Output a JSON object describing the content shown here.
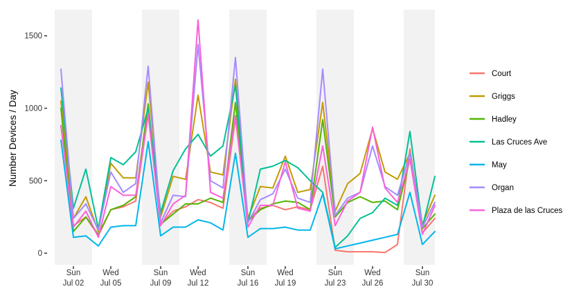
{
  "chart_data": {
    "type": "line",
    "title": "",
    "xlabel": "",
    "ylabel": "Number Devices / Day",
    "ylim": [
      -80,
      1680
    ],
    "xlim": [
      "2017-06-30",
      "2017-07-31"
    ],
    "y_ticks": [
      0,
      500,
      1000,
      1500
    ],
    "y_tick_labels": [
      "0",
      "500",
      "1000",
      "1500"
    ],
    "x_ticks": [
      {
        "date": "2017-07-02",
        "day": "Sun",
        "date_label": "Jul 02"
      },
      {
        "date": "2017-07-05",
        "day": "Wed",
        "date_label": "Jul 05"
      },
      {
        "date": "2017-07-09",
        "day": "Sun",
        "date_label": "Jul 09"
      },
      {
        "date": "2017-07-12",
        "day": "Wed",
        "date_label": "Jul 12"
      },
      {
        "date": "2017-07-16",
        "day": "Sun",
        "date_label": "Jul 16"
      },
      {
        "date": "2017-07-19",
        "day": "Wed",
        "date_label": "Jul 19"
      },
      {
        "date": "2017-07-23",
        "day": "Sun",
        "date_label": "Jul 23"
      },
      {
        "date": "2017-07-26",
        "day": "Wed",
        "date_label": "Jul 26"
      },
      {
        "date": "2017-07-30",
        "day": "Sun",
        "date_label": "Jul 30"
      }
    ],
    "weekend_bands": [
      [
        "2017-07-01",
        "2017-07-03"
      ],
      [
        "2017-07-08",
        "2017-07-10"
      ],
      [
        "2017-07-15",
        "2017-07-17"
      ],
      [
        "2017-07-22",
        "2017-07-24"
      ],
      [
        "2017-07-29",
        "2017-07-31"
      ]
    ],
    "grid": false,
    "legend_position": "right",
    "background_band_color": "#f2f2f2",
    "x": [
      "2017-07-01",
      "2017-07-02",
      "2017-07-03",
      "2017-07-04",
      "2017-07-05",
      "2017-07-06",
      "2017-07-07",
      "2017-07-08",
      "2017-07-09",
      "2017-07-10",
      "2017-07-11",
      "2017-07-12",
      "2017-07-13",
      "2017-07-14",
      "2017-07-15",
      "2017-07-16",
      "2017-07-17",
      "2017-07-18",
      "2017-07-19",
      "2017-07-20",
      "2017-07-21",
      "2017-07-22",
      "2017-07-23",
      "2017-07-24",
      "2017-07-25",
      "2017-07-26",
      "2017-07-27",
      "2017-07-28",
      "2017-07-29",
      "2017-07-30",
      "2017-07-31"
    ],
    "series": [
      {
        "name": "Court",
        "color": "#F8766D",
        "values": [
          880,
          190,
          250,
          120,
          300,
          320,
          360,
          960,
          200,
          290,
          320,
          370,
          350,
          310,
          930,
          230,
          310,
          330,
          300,
          320,
          300,
          600,
          20,
          10,
          10,
          10,
          5,
          60,
          720,
          140,
          240
        ]
      },
      {
        "name": "Griggs",
        "color": "#C49A00",
        "values": [
          1050,
          240,
          390,
          150,
          620,
          520,
          520,
          1180,
          250,
          530,
          510,
          1090,
          560,
          540,
          1200,
          240,
          460,
          450,
          670,
          420,
          440,
          1040,
          290,
          480,
          550,
          860,
          560,
          510,
          690,
          200,
          400
        ]
      },
      {
        "name": "Hadley",
        "color": "#53B400",
        "values": [
          1000,
          150,
          250,
          130,
          300,
          330,
          390,
          1030,
          200,
          270,
          340,
          340,
          380,
          350,
          1040,
          220,
          300,
          340,
          360,
          350,
          300,
          920,
          250,
          350,
          390,
          350,
          360,
          300,
          650,
          170,
          270
        ]
      },
      {
        "name": "Las Cruces Ave",
        "color": "#00C094",
        "values": [
          1140,
          310,
          580,
          170,
          660,
          610,
          700,
          1000,
          280,
          570,
          720,
          820,
          670,
          740,
          1160,
          210,
          580,
          600,
          640,
          590,
          500,
          420,
          40,
          120,
          240,
          280,
          380,
          330,
          840,
          180,
          530
        ]
      },
      {
        "name": "May",
        "color": "#00B6EB",
        "values": [
          780,
          110,
          120,
          50,
          180,
          190,
          190,
          770,
          120,
          180,
          180,
          230,
          210,
          160,
          690,
          110,
          170,
          170,
          180,
          160,
          160,
          410,
          30,
          50,
          70,
          90,
          110,
          130,
          420,
          60,
          150
        ]
      },
      {
        "name": "Organ",
        "color": "#A58AFF",
        "values": [
          1270,
          240,
          340,
          160,
          560,
          420,
          480,
          1290,
          210,
          400,
          390,
          1440,
          500,
          450,
          1350,
          210,
          370,
          410,
          580,
          380,
          350,
          1270,
          260,
          380,
          420,
          740,
          460,
          400,
          690,
          180,
          350
        ]
      },
      {
        "name": "Plaza de las Cruces",
        "color": "#FB61D7",
        "values": [
          880,
          180,
          290,
          110,
          460,
          400,
          400,
          960,
          190,
          340,
          400,
          1610,
          420,
          380,
          950,
          180,
          330,
          330,
          630,
          310,
          290,
          740,
          190,
          360,
          420,
          870,
          450,
          350,
          650,
          130,
          330
        ]
      }
    ]
  }
}
